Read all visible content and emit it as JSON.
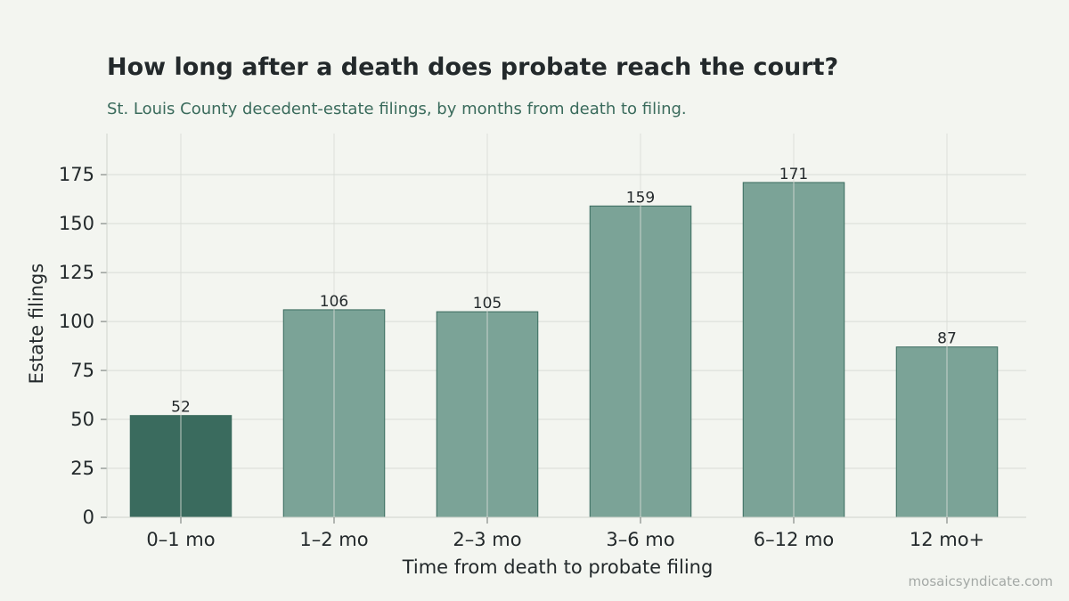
{
  "title": "How long after a death does probate reach the court?",
  "subtitle": "St. Louis County decedent-estate filings, by months from death to filing.",
  "watermark": "mosaicsyndicate.com",
  "colors": {
    "background": "#f3f5f0",
    "bar": "#7ba397",
    "bar_highlight": "#3a6b5e",
    "bar_edge": "#3a6b5e",
    "grid": "#d8dcd6",
    "text": "#23292b",
    "subtitle": "#3a6b5c"
  },
  "chart_data": {
    "type": "bar",
    "title": "How long after a death does probate reach the court?",
    "subtitle": "St. Louis County decedent-estate filings, by months from death to filing.",
    "xlabel": "Time from death to probate filing",
    "ylabel": "Estate filings",
    "categories": [
      "0–1 mo",
      "1–2 mo",
      "2–3 mo",
      "3–6 mo",
      "6–12 mo",
      "12 mo+"
    ],
    "values": [
      52,
      106,
      105,
      159,
      171,
      87
    ],
    "highlight_index": 0,
    "ylim": [
      0,
      196
    ],
    "yticks": [
      0,
      25,
      50,
      75,
      100,
      125,
      150,
      175
    ],
    "grid": true,
    "data_labels": true
  }
}
